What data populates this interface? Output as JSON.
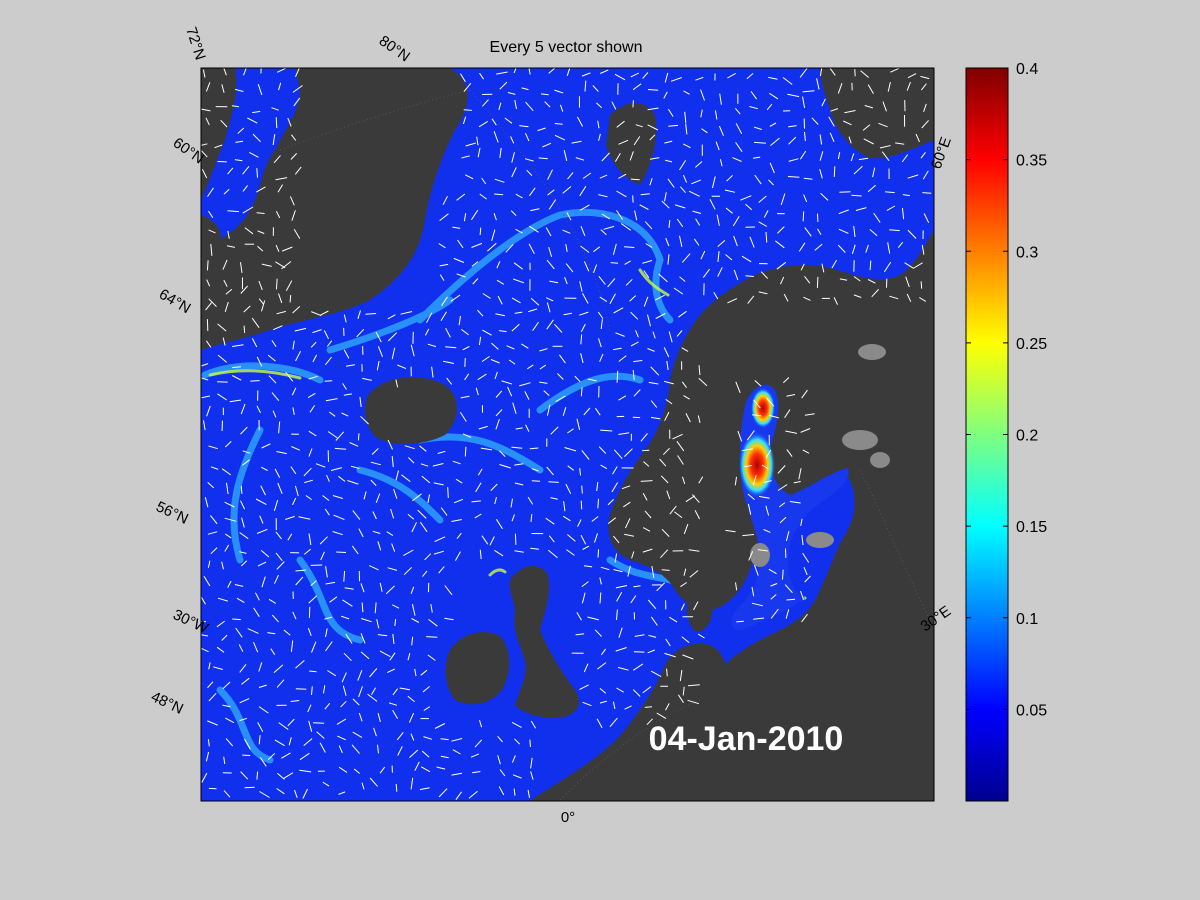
{
  "title": "Every 5 vector shown",
  "date": "04-Jan-2010",
  "colors": {
    "figure_background": "#cccccc",
    "land": "#3a3a3a",
    "ice": "#8a8a8a",
    "vector": "#ffffff"
  },
  "map_labels": {
    "lat_72n": "72°N",
    "lat_80n": "80°N",
    "lat_60n": "60°N",
    "lat_64n": "64°N",
    "lat_56n": "56°N",
    "lat_48n": "48°N",
    "lon_30w": "30°W",
    "lon_0": "0°",
    "lon_30e": "30°E",
    "lon_60e": "60°E"
  },
  "colorbar": {
    "min": 0,
    "max": 0.4,
    "ticks": [
      {
        "value": 0.4,
        "label": "0.4"
      },
      {
        "value": 0.35,
        "label": "0.35"
      },
      {
        "value": 0.3,
        "label": "0.3"
      },
      {
        "value": 0.25,
        "label": "0.25"
      },
      {
        "value": 0.2,
        "label": "0.2"
      },
      {
        "value": 0.15,
        "label": "0.15"
      },
      {
        "value": 0.1,
        "label": "0.1"
      },
      {
        "value": 0.05,
        "label": "0.05"
      }
    ],
    "colormap": "jet"
  }
}
